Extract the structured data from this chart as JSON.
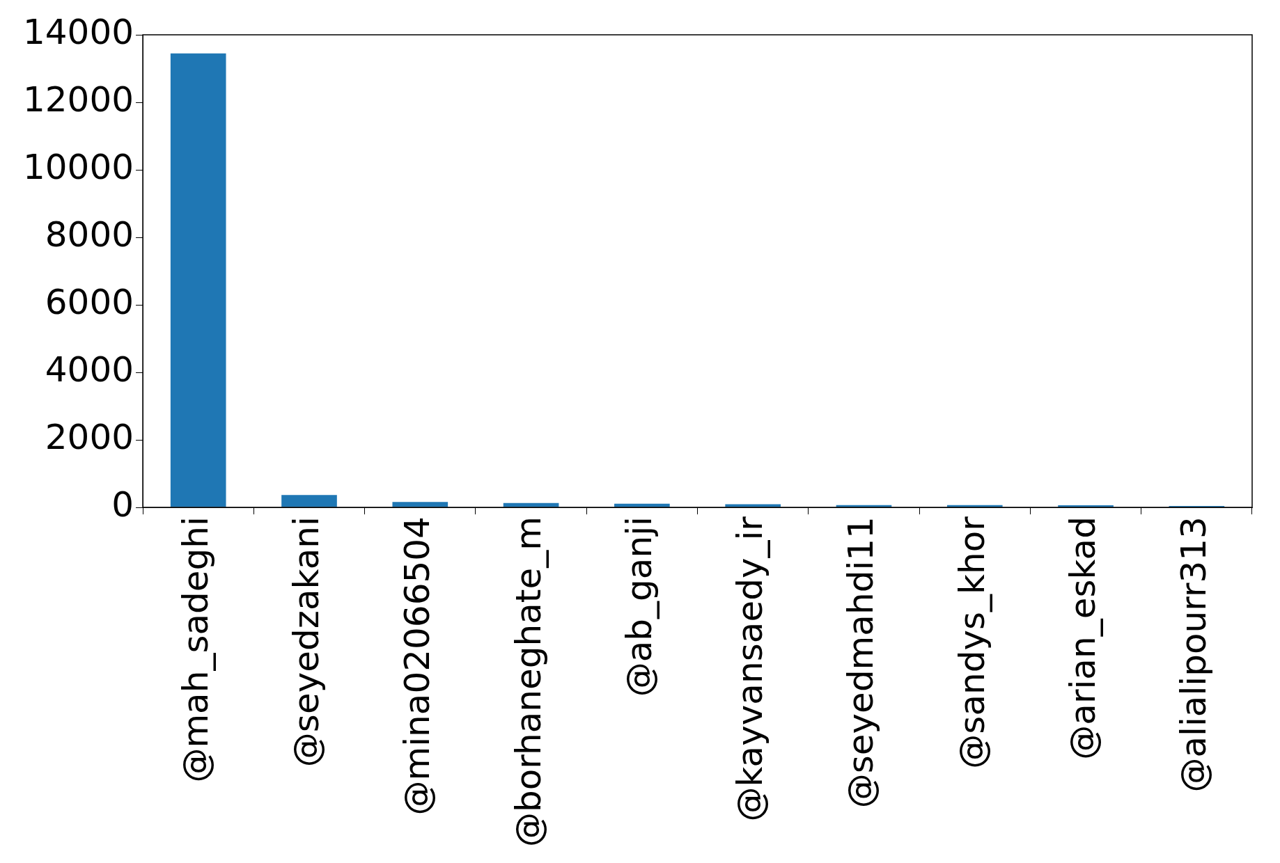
{
  "chart_data": {
    "type": "bar",
    "categories": [
      "@mah_sadeghi",
      "@seyedzakani",
      "@mina02066504",
      "@borhaneghate_m",
      "@ab_ganji",
      "@kayvansaedy_ir",
      "@seyedmahdi11",
      "@sandys_khor",
      "@arian_eskad",
      "@alialipourr313"
    ],
    "values": [
      13450,
      370,
      160,
      130,
      110,
      95,
      70,
      70,
      65,
      45
    ],
    "color": "#1f77b4",
    "ylim": [
      0,
      14000
    ],
    "yticks": [
      0,
      2000,
      4000,
      6000,
      8000,
      10000,
      12000,
      14000
    ],
    "grid": false,
    "legend": false
  }
}
